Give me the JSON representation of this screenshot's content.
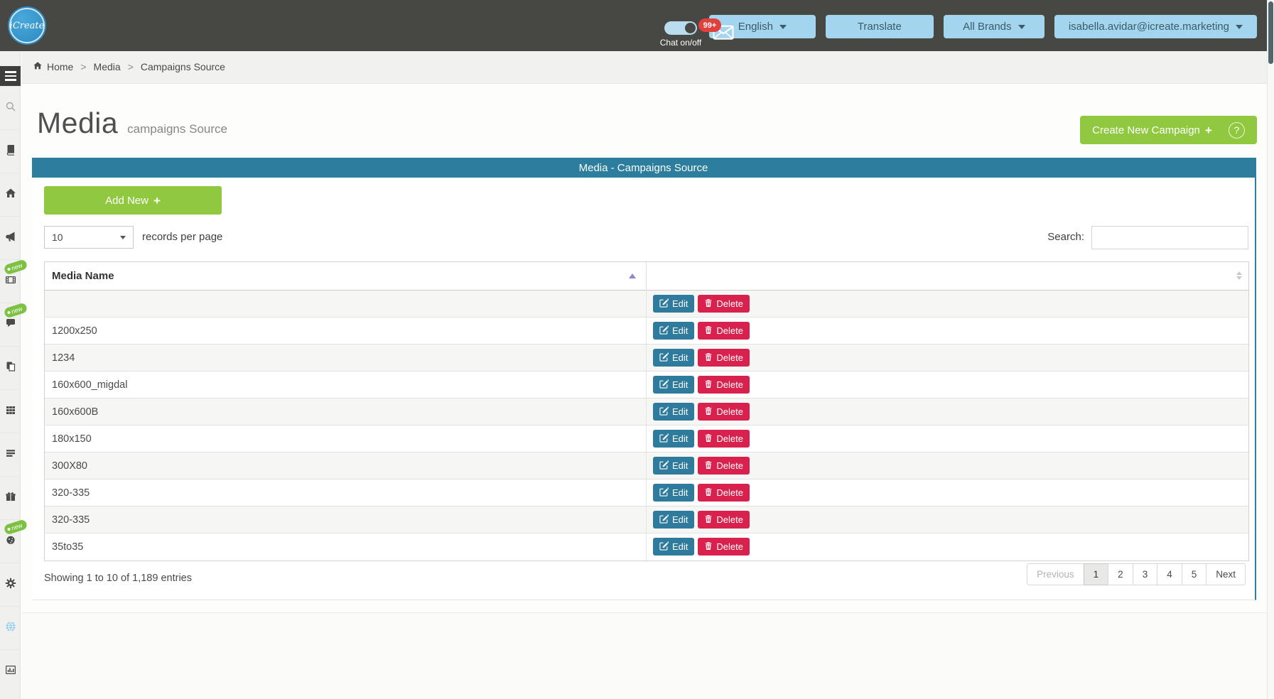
{
  "header": {
    "logo": "iCreate",
    "chat_toggle": {
      "label": "Chat on/off",
      "state": "on"
    },
    "notifications": {
      "badge": "99+",
      "icon": "envelope-icon"
    },
    "menu_buttons": [
      {
        "name": "language",
        "label": "English",
        "caret": true
      },
      {
        "name": "translate",
        "label": "Translate",
        "caret": false
      },
      {
        "name": "brands",
        "label": "All Brands",
        "caret": true
      },
      {
        "name": "account",
        "label": "isabella.avidar@icreate.marketing",
        "caret": true
      }
    ]
  },
  "sidebar": {
    "new_badge": "new",
    "menu_icon": "hamburger-icon",
    "items": [
      {
        "icon": "search-icon"
      },
      {
        "icon": "book-icon"
      },
      {
        "icon": "home-icon"
      },
      {
        "icon": "megaphone-icon"
      },
      {
        "icon": "film-icon",
        "new": true
      },
      {
        "icon": "chat-icon",
        "new": true
      },
      {
        "icon": "copy-icon"
      },
      {
        "icon": "grid-icon"
      },
      {
        "icon": "list-icon"
      },
      {
        "icon": "gift-icon"
      },
      {
        "icon": "cookie-icon",
        "new": true
      },
      {
        "icon": "gear-icon"
      },
      {
        "icon": "globe-icon"
      },
      {
        "icon": "bar-chart-icon"
      }
    ]
  },
  "breadcrumb": {
    "separator": ">",
    "items": [
      {
        "label": "Home",
        "icon": "home-icon"
      },
      {
        "label": "Media"
      },
      {
        "label": "Campaigns Source"
      }
    ]
  },
  "page": {
    "title": "Media",
    "subtitle": "campaigns Source",
    "create_button": {
      "label": "Create New Campaign",
      "plus": "+",
      "help": "?"
    }
  },
  "panel": {
    "title": "Media - Campaigns Source",
    "add_button": {
      "label": "Add New",
      "plus": "+"
    },
    "records": {
      "selected": "10",
      "label": "records per page"
    },
    "search": {
      "label": "Search:",
      "value": ""
    },
    "table": {
      "columns": [
        {
          "label": "Media Name",
          "sort": "asc"
        },
        {
          "label": "",
          "sort": "both"
        }
      ],
      "rows": [
        "",
        "1200x250",
        "1234",
        "160x600_migdal",
        "160x600B",
        "180x150",
        "300X80",
        "320-335",
        "320-335",
        "35to35"
      ],
      "actions": {
        "edit": "Edit",
        "delete": "Delete"
      }
    },
    "footer": {
      "summary": "Showing 1 to 10 of 1,189 entries",
      "pagination": [
        "Previous",
        "1",
        "2",
        "3",
        "4",
        "5",
        "Next"
      ],
      "active_page": "1"
    }
  },
  "colors": {
    "header_gray": "#474744",
    "accent_teal": "#2d7e9e",
    "green": "#90c840",
    "delete_red": "#d9214e",
    "light_blue": "#a3d6ee",
    "badge_red": "#e0413d",
    "new_green": "#7cc142"
  }
}
